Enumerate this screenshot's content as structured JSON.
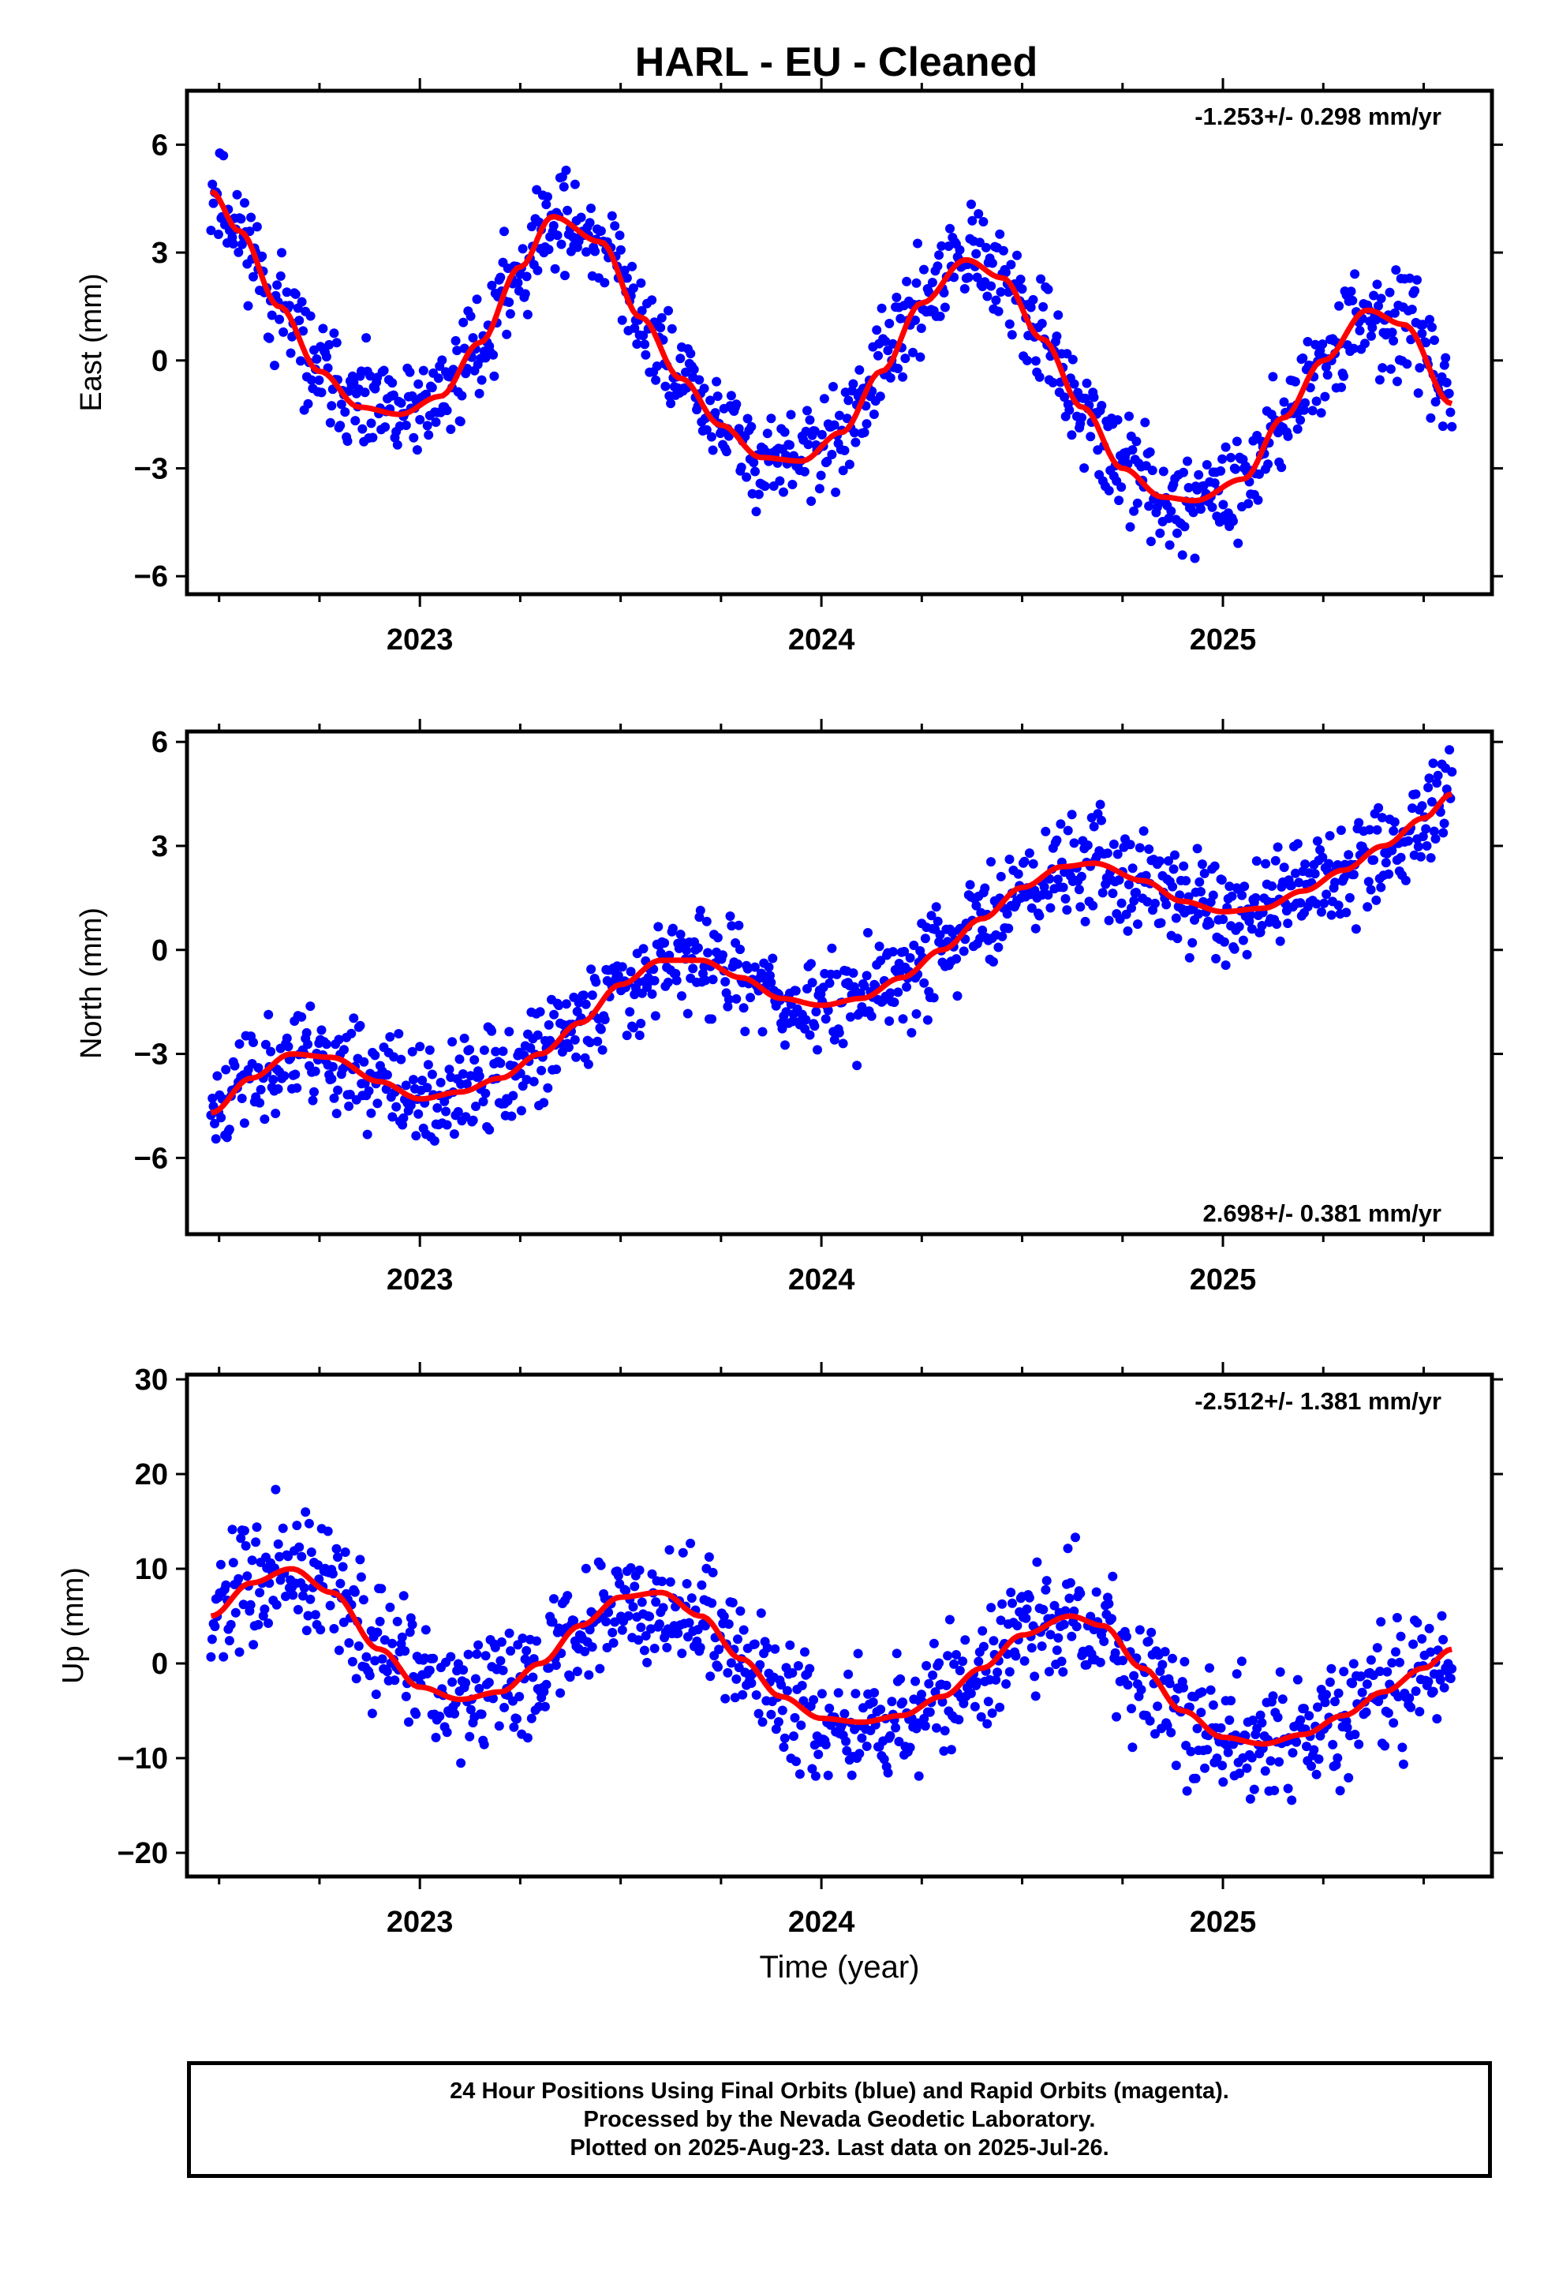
{
  "title": "HARL  - EU - Cleaned",
  "xlabel": "Time (year)",
  "footer": [
    "24 Hour Positions Using Final Orbits (blue) and Rapid Orbits (magenta).",
    "Processed by the Nevada Geodetic Laboratory.",
    "Plotted on 2025-Aug-23. Last data on 2025-Jul-26."
  ],
  "colors": {
    "points": "#0000ff",
    "fit": "#ff0000",
    "frame": "#000000"
  },
  "chart_data": [
    {
      "type": "scatter",
      "ylabel": "East (mm)",
      "rate_label": "-1.253+/- 0.298 mm/yr",
      "xlim": [
        2022.42,
        2025.67
      ],
      "ylim": [
        -6.5,
        7.5
      ],
      "yticks": [
        6,
        3,
        0,
        -3,
        -6
      ],
      "ytick_labels": [
        "6",
        "3",
        "0",
        "−3",
        "−6"
      ],
      "xticks": [
        2023,
        2024,
        2025
      ],
      "fit": {
        "x": [
          2022.48,
          2022.55,
          2022.65,
          2022.75,
          2022.85,
          2022.95,
          2023.05,
          2023.15,
          2023.25,
          2023.33,
          2023.45,
          2023.55,
          2023.65,
          2023.75,
          2023.85,
          2023.95,
          2024.05,
          2024.15,
          2024.25,
          2024.36,
          2024.45,
          2024.55,
          2024.65,
          2024.75,
          2024.85,
          2024.93,
          2025.05,
          2025.15,
          2025.25,
          2025.36,
          2025.45,
          2025.57
        ],
        "y": [
          4.7,
          3.6,
          1.5,
          -0.3,
          -1.3,
          -1.5,
          -1.0,
          0.5,
          2.6,
          4.0,
          3.3,
          1.2,
          -0.5,
          -1.8,
          -2.7,
          -2.8,
          -2.0,
          -0.3,
          1.6,
          2.8,
          2.3,
          0.6,
          -1.3,
          -3.0,
          -3.8,
          -3.9,
          -3.3,
          -1.6,
          0.0,
          1.4,
          1.0,
          -1.2
        ]
      },
      "seed": 11,
      "noise": 0.85
    },
    {
      "type": "scatter",
      "ylabel": "North (mm)",
      "rate_label": "2.698+/- 0.381 mm/yr",
      "xlim": [
        2022.42,
        2025.67
      ],
      "ylim": [
        -8.2,
        6.3
      ],
      "yticks": [
        6,
        3,
        0,
        -3,
        -6
      ],
      "ytick_labels": [
        "6",
        "3",
        "0",
        "−3",
        "−6"
      ],
      "xticks": [
        2023,
        2024,
        2025
      ],
      "fit": {
        "x": [
          2022.48,
          2022.58,
          2022.68,
          2022.78,
          2022.9,
          2023.0,
          2023.1,
          2023.2,
          2023.3,
          2023.4,
          2023.5,
          2023.6,
          2023.7,
          2023.8,
          2023.9,
          2024.0,
          2024.1,
          2024.2,
          2024.3,
          2024.4,
          2024.5,
          2024.6,
          2024.68,
          2024.8,
          2024.9,
          2025.0,
          2025.1,
          2025.2,
          2025.3,
          2025.4,
          2025.5,
          2025.57
        ],
        "y": [
          -4.7,
          -3.7,
          -3.0,
          -3.1,
          -3.8,
          -4.3,
          -4.1,
          -3.7,
          -3.0,
          -2.1,
          -1.0,
          -0.3,
          -0.3,
          -0.8,
          -1.4,
          -1.6,
          -1.4,
          -0.8,
          0.0,
          0.9,
          1.8,
          2.4,
          2.5,
          2.0,
          1.4,
          1.1,
          1.2,
          1.7,
          2.3,
          3.0,
          3.8,
          4.5
        ]
      },
      "seed": 23,
      "noise": 0.9
    },
    {
      "type": "scatter",
      "ylabel": "Up (mm)",
      "rate_label": "-2.512+/- 1.381 mm/yr",
      "xlim": [
        2022.42,
        2025.67
      ],
      "ylim": [
        -22.5,
        30.5
      ],
      "yticks": [
        30,
        20,
        10,
        0,
        -10,
        -20
      ],
      "ytick_labels": [
        "30",
        "20",
        "10",
        "0",
        "−10",
        "−20"
      ],
      "xticks": [
        2023,
        2024,
        2025
      ],
      "fit": {
        "x": [
          2022.48,
          2022.58,
          2022.68,
          2022.78,
          2022.9,
          2023.0,
          2023.1,
          2023.2,
          2023.3,
          2023.4,
          2023.5,
          2023.6,
          2023.7,
          2023.8,
          2023.9,
          2024.0,
          2024.1,
          2024.2,
          2024.3,
          2024.4,
          2024.5,
          2024.62,
          2024.7,
          2024.8,
          2024.9,
          2025.0,
          2025.1,
          2025.2,
          2025.3,
          2025.4,
          2025.5,
          2025.57
        ],
        "y": [
          5.0,
          8.5,
          10.0,
          7.5,
          1.5,
          -2.5,
          -3.8,
          -3.0,
          0.0,
          4.0,
          7.0,
          7.5,
          5.0,
          0.5,
          -3.5,
          -5.8,
          -6.2,
          -5.5,
          -3.5,
          -0.5,
          3.0,
          5.0,
          4.0,
          -0.5,
          -5.0,
          -7.8,
          -8.5,
          -7.5,
          -5.5,
          -3.0,
          -0.5,
          1.5
        ]
      },
      "seed": 37,
      "noise": 4.0
    }
  ]
}
